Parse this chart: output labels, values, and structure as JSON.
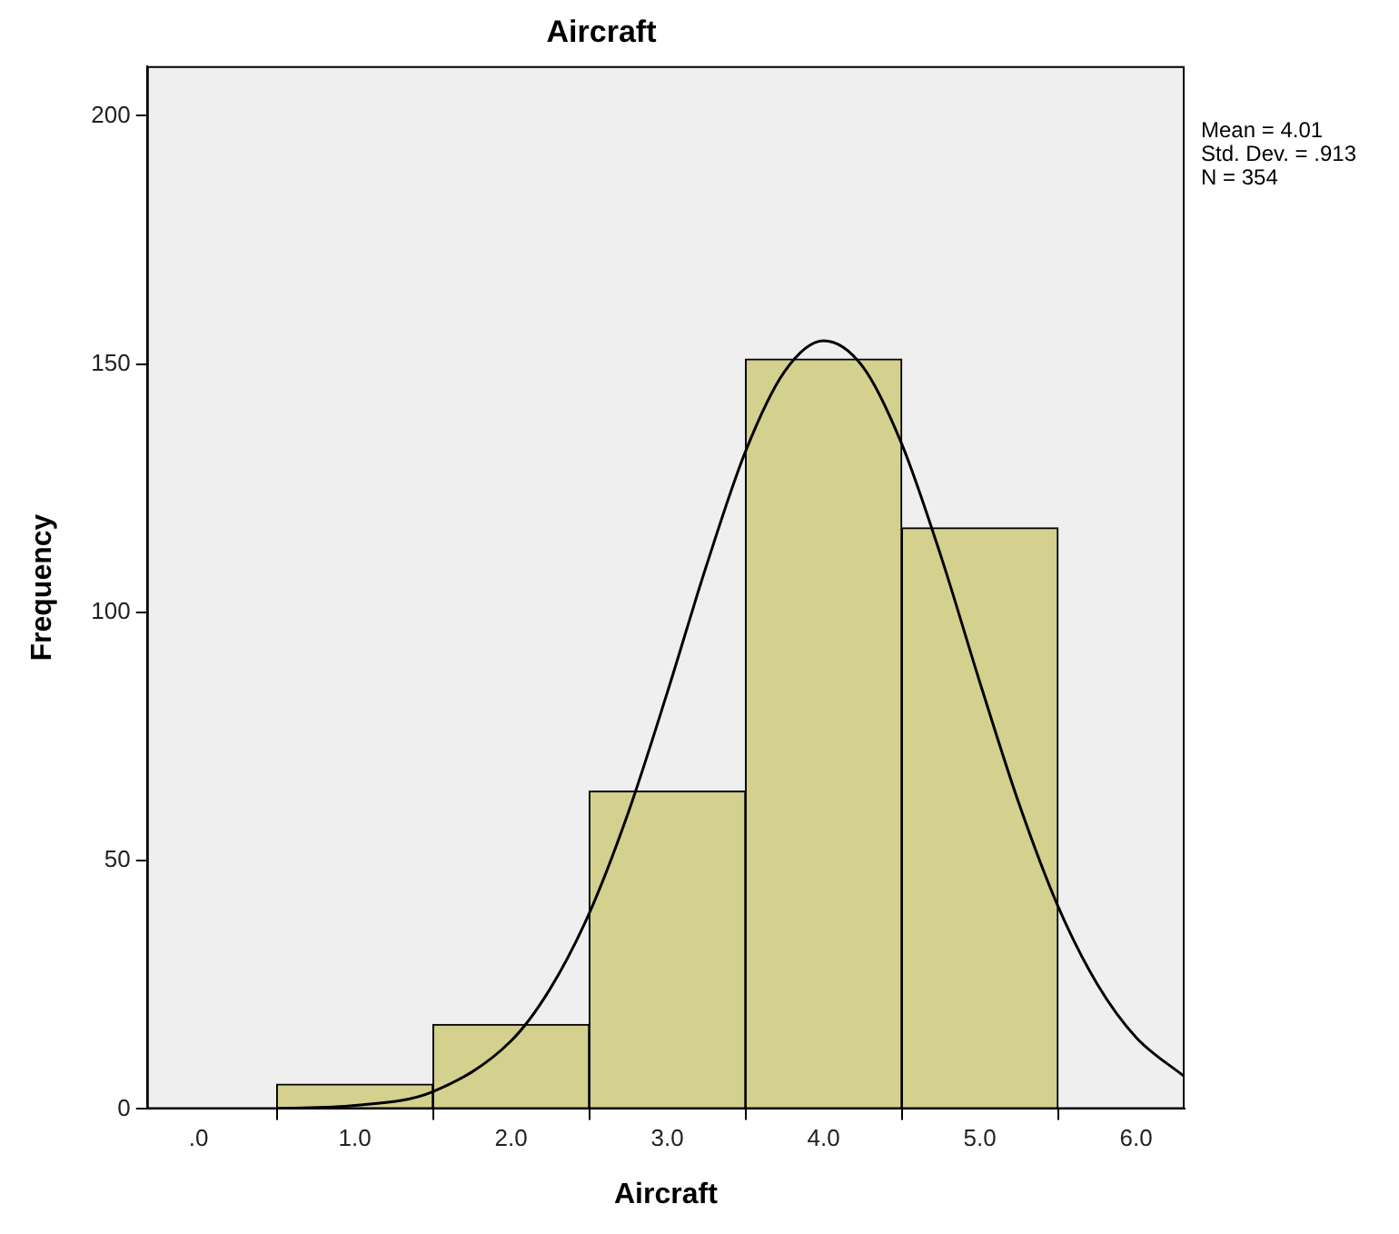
{
  "chart_data": {
    "type": "histogram",
    "title": "Aircraft",
    "xlabel": "Aircraft",
    "ylabel": "Frequency",
    "bins": [
      0.5,
      1.5,
      2.5,
      3.5,
      4.5,
      5.5
    ],
    "values": [
      5,
      17,
      64,
      151,
      117
    ],
    "color": "#d4d08e",
    "series": [
      {
        "type": "line",
        "color": "#000000",
        "x": [
          0.5,
          1.0,
          1.5,
          2.0,
          2.25,
          2.5,
          2.75,
          3.0,
          3.25,
          3.5,
          3.75,
          4.0,
          4.25,
          4.5,
          4.75,
          5.0,
          5.25,
          5.5,
          5.75,
          6.0,
          6.31
        ],
        "values": [
          0.1,
          0.7,
          3.5,
          13.7,
          24.2,
          39.4,
          59.7,
          83.9,
          109.4,
          132.4,
          148.5,
          154.7,
          149.5,
          133.9,
          111.4,
          85.9,
          61.5,
          40.8,
          25.2,
          14.4,
          6.5
        ]
      }
    ],
    "xlim": [
      -0.33,
      6.31
    ],
    "xticks": [
      {
        "value": 0,
        "label": ".0"
      },
      {
        "value": 1,
        "label": "1.0"
      },
      {
        "value": 2,
        "label": "2.0"
      },
      {
        "value": 3,
        "label": "3.0"
      },
      {
        "value": 4,
        "label": "4.0"
      },
      {
        "value": 5,
        "label": "5.0"
      },
      {
        "value": 6,
        "label": "6.0"
      }
    ],
    "ylim": [
      0,
      210
    ],
    "yticks": [
      0,
      50,
      100,
      150,
      200
    ],
    "annotations": [
      "Mean = 4.01",
      "Std. Dev. = .913",
      "N = 354"
    ],
    "grid": false,
    "legend": false,
    "marker": "none"
  }
}
